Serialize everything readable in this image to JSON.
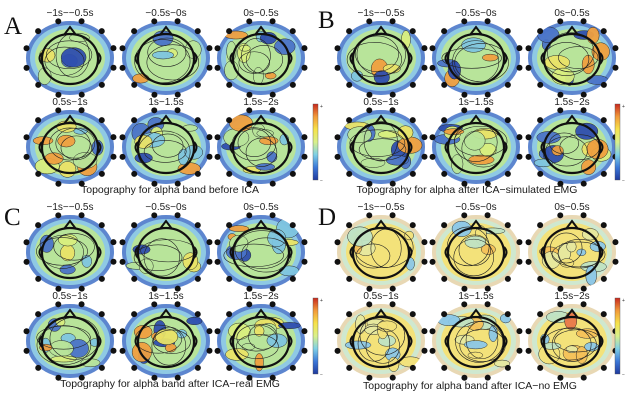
{
  "panels": [
    {
      "letter": "A",
      "caption": "Topography for alpha band before ICA",
      "windows": [
        "−1s−−0.5s",
        "−0.5s−0s",
        "0s−0.5s",
        "0.5s−1s",
        "1s−1.5s",
        "1.5s−2s"
      ],
      "style": "cool"
    },
    {
      "letter": "B",
      "caption": "Topography for alpha after ICA−simulated EMG",
      "windows": [
        "−1s−−0.5s",
        "−0.5s−0s",
        "0s−0.5s",
        "0.5s−1s",
        "1s−1.5s",
        "1.5s−2s"
      ],
      "style": "cool"
    },
    {
      "letter": "C",
      "caption": "Topography for alpha band after ICA−real EMG",
      "windows": [
        "−1s−−0.5s",
        "−0.5s−0s",
        "0s−0.5s",
        "0.5s−1s",
        "1s−1.5s",
        "1.5s−2s"
      ],
      "style": "cool"
    },
    {
      "letter": "D",
      "caption": "Topography for alpha band after ICA−no EMG",
      "windows": [
        "−1s−−0.5s",
        "−0.5s−0s",
        "0s−0.5s",
        "0.5s−1s",
        "1s−1.5s",
        "1.5s−2s"
      ],
      "style": "warm"
    }
  ],
  "colorbar": {
    "max_label": "+",
    "min_label": "−"
  },
  "colors": {
    "background": "#ffffff",
    "head_outline": "#111111",
    "electrode": "#111111",
    "contour": "#222222",
    "scale": [
      "#1f3a9e",
      "#3c78d8",
      "#7fd0e6",
      "#d9f08a",
      "#f6e24a",
      "#f29a3a",
      "#c8281e"
    ]
  }
}
